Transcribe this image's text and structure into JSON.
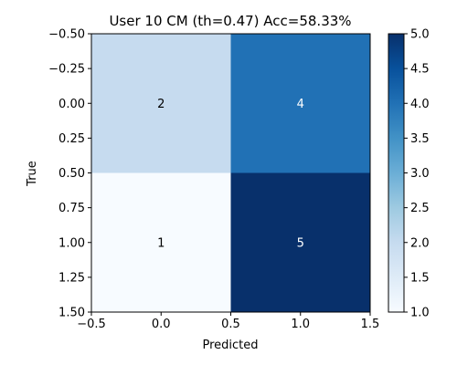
{
  "chart_data": {
    "type": "heatmap",
    "title": "User 10 CM (th=0.47) Acc=58.33%",
    "xlabel": "Predicted",
    "ylabel": "True",
    "xlim": [
      -0.5,
      1.5
    ],
    "ylim": [
      1.5,
      -0.5
    ],
    "x_ticks": [
      -0.5,
      0.0,
      0.5,
      1.0,
      1.5
    ],
    "x_tick_labels": [
      "−0.5",
      "0.0",
      "0.5",
      "1.0",
      "1.5"
    ],
    "y_ticks": [
      -0.5,
      -0.25,
      0.0,
      0.25,
      0.5,
      0.75,
      1.0,
      1.25,
      1.5
    ],
    "y_tick_labels": [
      "−0.50",
      "−0.25",
      "0.00",
      "0.25",
      "0.50",
      "0.75",
      "1.00",
      "1.25",
      "1.50"
    ],
    "matrix": [
      [
        2,
        4
      ],
      [
        1,
        5
      ]
    ],
    "cell_labels": [
      [
        "2",
        "4"
      ],
      [
        "1",
        "5"
      ]
    ],
    "colorbar": {
      "min": 1.0,
      "max": 5.0,
      "ticks": [
        1.0,
        1.5,
        2.0,
        2.5,
        3.0,
        3.5,
        4.0,
        4.5,
        5.0
      ],
      "tick_labels": [
        "1.0",
        "1.5",
        "2.0",
        "2.5",
        "3.0",
        "3.5",
        "4.0",
        "4.5",
        "5.0"
      ]
    },
    "colormap": [
      "#f7fbff",
      "#deebf7",
      "#c6dbef",
      "#9ecae1",
      "#6baed6",
      "#4292c6",
      "#2171b5",
      "#08519c",
      "#08306b"
    ],
    "grid": false
  }
}
